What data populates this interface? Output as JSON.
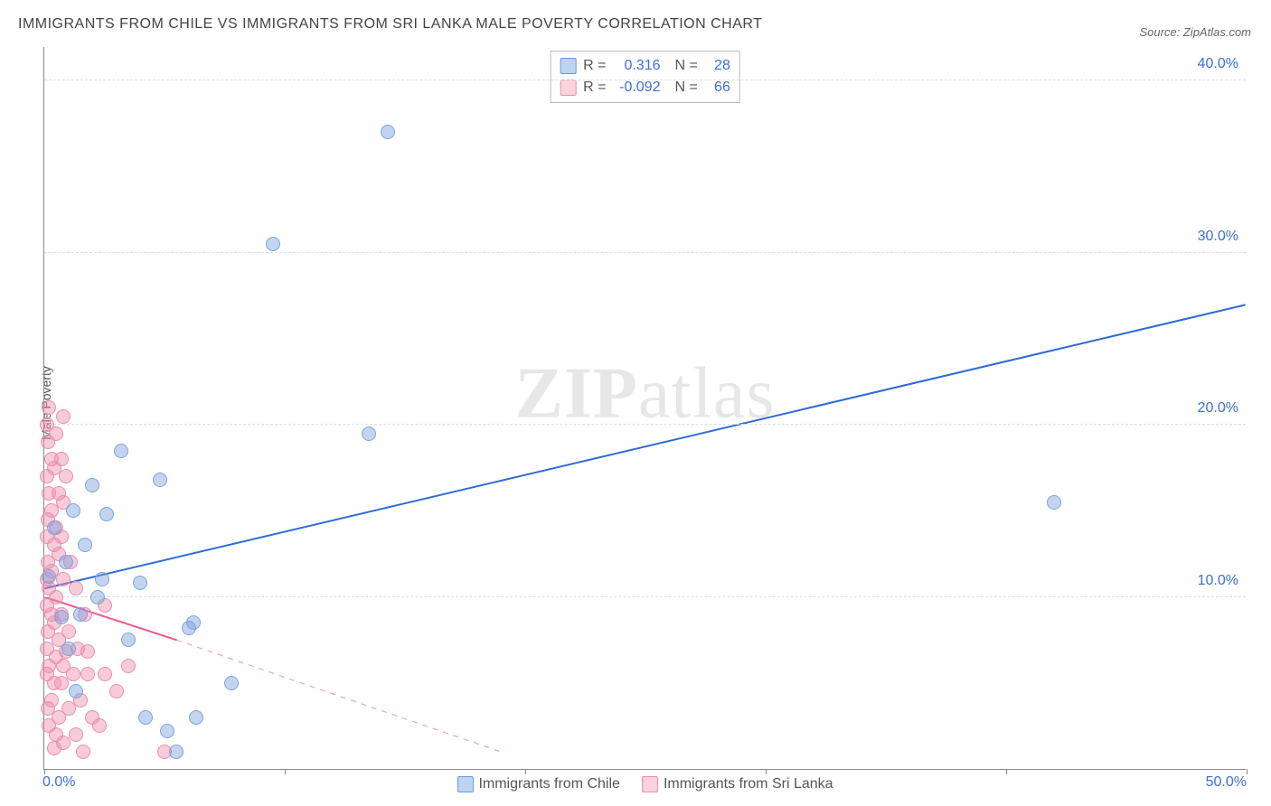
{
  "title": "IMMIGRANTS FROM CHILE VS IMMIGRANTS FROM SRI LANKA MALE POVERTY CORRELATION CHART",
  "source": "Source: ZipAtlas.com",
  "ylabel": "Male Poverty",
  "watermark_a": "ZIP",
  "watermark_b": "atlas",
  "chart": {
    "type": "scatter",
    "xlim": [
      0,
      50
    ],
    "ylim": [
      0,
      42
    ],
    "xticks": [
      0,
      10,
      20,
      30,
      40,
      50
    ],
    "xtick_labels": [
      "0.0%",
      "",
      "",
      "",
      "",
      "50.0%"
    ],
    "yticks": [
      10,
      20,
      30,
      40
    ],
    "ytick_labels": [
      "10.0%",
      "20.0%",
      "30.0%",
      "40.0%"
    ],
    "grid_color": "#dddddd",
    "axis_color": "#888888",
    "background": "#ffffff",
    "tick_label_color": "#3b6fd6",
    "tick_label_fontsize": 16,
    "point_radius": 8,
    "series": [
      {
        "name": "Immigrants from Chile",
        "color_fill": "rgba(120,160,220,0.45)",
        "color_stroke": "#7ba5d8",
        "swatch_fill": "#bcd4f0",
        "swatch_stroke": "#6a9bd4",
        "R": "0.316",
        "N": "28",
        "trend": {
          "x1": 0,
          "y1": 10.5,
          "x2": 50,
          "y2": 27.0,
          "color": "#2e6bd4",
          "width": 2,
          "dash": ""
        },
        "points": [
          [
            0.2,
            11.2
          ],
          [
            0.4,
            14.0
          ],
          [
            0.7,
            8.8
          ],
          [
            0.9,
            12.0
          ],
          [
            1.0,
            7.0
          ],
          [
            1.2,
            15.0
          ],
          [
            1.3,
            4.5
          ],
          [
            1.5,
            9.0
          ],
          [
            1.7,
            13.0
          ],
          [
            2.0,
            16.5
          ],
          [
            2.2,
            10.0
          ],
          [
            2.4,
            11.0
          ],
          [
            2.6,
            14.8
          ],
          [
            3.2,
            18.5
          ],
          [
            3.5,
            7.5
          ],
          [
            4.0,
            10.8
          ],
          [
            4.2,
            3.0
          ],
          [
            4.8,
            16.8
          ],
          [
            5.1,
            2.2
          ],
          [
            5.5,
            1.0
          ],
          [
            6.0,
            8.2
          ],
          [
            6.2,
            8.5
          ],
          [
            6.3,
            3.0
          ],
          [
            7.8,
            5.0
          ],
          [
            9.5,
            30.5
          ],
          [
            13.5,
            19.5
          ],
          [
            14.3,
            37.0
          ],
          [
            42.0,
            15.5
          ]
        ]
      },
      {
        "name": "Immigrants from Sri Lanka",
        "color_fill": "rgba(240,140,170,0.45)",
        "color_stroke": "#e88fb0",
        "swatch_fill": "#fbd2de",
        "swatch_stroke": "#e88fb0",
        "R": "-0.092",
        "N": "66",
        "trend_solid": {
          "x1": 0,
          "y1": 10.0,
          "x2": 5.5,
          "y2": 7.5,
          "color": "#e85a8a",
          "width": 2
        },
        "trend_dash": {
          "x1": 5.5,
          "y1": 7.5,
          "x2": 19,
          "y2": 1.0,
          "color": "#e8a8bc",
          "width": 1.2
        },
        "points": [
          [
            0.1,
            20.0
          ],
          [
            0.1,
            17.0
          ],
          [
            0.1,
            13.5
          ],
          [
            0.1,
            11.0
          ],
          [
            0.1,
            9.5
          ],
          [
            0.1,
            7.0
          ],
          [
            0.1,
            5.5
          ],
          [
            0.15,
            19.0
          ],
          [
            0.15,
            14.5
          ],
          [
            0.15,
            12.0
          ],
          [
            0.15,
            8.0
          ],
          [
            0.15,
            3.5
          ],
          [
            0.2,
            21.0
          ],
          [
            0.2,
            16.0
          ],
          [
            0.2,
            10.5
          ],
          [
            0.2,
            6.0
          ],
          [
            0.2,
            2.5
          ],
          [
            0.3,
            18.0
          ],
          [
            0.3,
            15.0
          ],
          [
            0.3,
            11.5
          ],
          [
            0.3,
            9.0
          ],
          [
            0.3,
            4.0
          ],
          [
            0.4,
            17.5
          ],
          [
            0.4,
            13.0
          ],
          [
            0.4,
            8.5
          ],
          [
            0.4,
            5.0
          ],
          [
            0.4,
            1.2
          ],
          [
            0.5,
            19.5
          ],
          [
            0.5,
            14.0
          ],
          [
            0.5,
            10.0
          ],
          [
            0.5,
            6.5
          ],
          [
            0.5,
            2.0
          ],
          [
            0.6,
            16.0
          ],
          [
            0.6,
            12.5
          ],
          [
            0.6,
            7.5
          ],
          [
            0.6,
            3.0
          ],
          [
            0.7,
            18.0
          ],
          [
            0.7,
            13.5
          ],
          [
            0.7,
            9.0
          ],
          [
            0.7,
            5.0
          ],
          [
            0.8,
            20.5
          ],
          [
            0.8,
            15.5
          ],
          [
            0.8,
            11.0
          ],
          [
            0.8,
            6.0
          ],
          [
            0.8,
            1.5
          ],
          [
            0.9,
            17.0
          ],
          [
            0.9,
            6.8
          ],
          [
            1.0,
            3.5
          ],
          [
            1.0,
            8.0
          ],
          [
            1.1,
            12.0
          ],
          [
            1.2,
            5.5
          ],
          [
            1.3,
            2.0
          ],
          [
            1.3,
            10.5
          ],
          [
            1.4,
            7.0
          ],
          [
            1.5,
            4.0
          ],
          [
            1.6,
            1.0
          ],
          [
            1.7,
            9.0
          ],
          [
            1.8,
            5.5
          ],
          [
            1.8,
            6.8
          ],
          [
            2.0,
            3.0
          ],
          [
            2.3,
            2.5
          ],
          [
            2.5,
            9.5
          ],
          [
            2.5,
            5.5
          ],
          [
            3.0,
            4.5
          ],
          [
            3.5,
            6.0
          ],
          [
            5.0,
            1.0
          ]
        ]
      }
    ],
    "legend_bottom": [
      "Immigrants from Chile",
      "Immigrants from Sri Lanka"
    ]
  }
}
